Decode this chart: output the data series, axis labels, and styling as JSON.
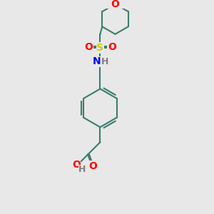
{
  "bg_color": "#e8e8e8",
  "bond_color": "#3a7d6e",
  "bond_width": 1.5,
  "atom_colors": {
    "O": "#ff0000",
    "N": "#0000ff",
    "S": "#cccc00",
    "C": "#3a7d6e",
    "H": "#808080"
  },
  "font_size": 9,
  "figsize": [
    3.0,
    3.0
  ],
  "dpi": 100
}
